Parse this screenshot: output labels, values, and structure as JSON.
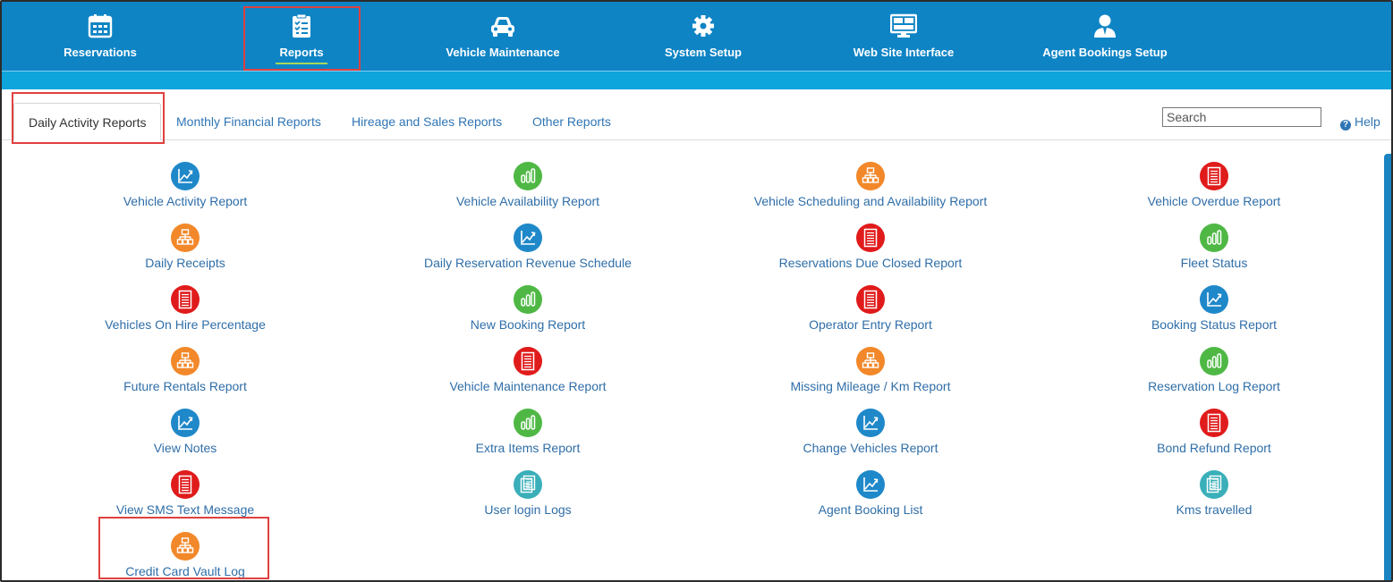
{
  "nav": {
    "items": [
      {
        "label": "Reservations",
        "icon": "calendar-icon"
      },
      {
        "label": "Reports",
        "icon": "clipboard-checklist-icon",
        "active": true
      },
      {
        "label": "Vehicle Maintenance",
        "icon": "car-icon"
      },
      {
        "label": "System Setup",
        "icon": "gear-icon"
      },
      {
        "label": "Web Site Interface",
        "icon": "monitor-icon"
      },
      {
        "label": "Agent Bookings Setup",
        "icon": "agent-user-icon"
      }
    ]
  },
  "tabs": [
    {
      "label": "Daily Activity Reports",
      "active": true
    },
    {
      "label": "Monthly Financial Reports"
    },
    {
      "label": "Hireage and Sales Reports"
    },
    {
      "label": "Other Reports"
    }
  ],
  "search": {
    "placeholder": "Search"
  },
  "help": {
    "label": "Help"
  },
  "colors": {
    "nav_bg": "#0e84c5",
    "subbar": "#0ea5dd",
    "link": "#2f6ea8",
    "highlight": "#e0403f",
    "icon_blue": "#1f88c9",
    "icon_green": "#4fb845",
    "icon_orange": "#f2882a",
    "icon_red": "#e01b1b",
    "icon_teal": "#3aafb9"
  },
  "reports": {
    "col1": [
      {
        "label": "Vehicle Activity Report",
        "icon": "trend-chart-icon",
        "color": "blue"
      },
      {
        "label": "Daily Receipts",
        "icon": "org-chart-icon",
        "color": "orange"
      },
      {
        "label": "Vehicles On Hire Percentage",
        "icon": "document-icon",
        "color": "red"
      },
      {
        "label": "Future Rentals Report",
        "icon": "org-chart-icon",
        "color": "orange"
      },
      {
        "label": "View Notes",
        "icon": "trend-chart-icon",
        "color": "blue"
      },
      {
        "label": "View SMS Text Message",
        "icon": "document-icon",
        "color": "red"
      },
      {
        "label": "Credit Card Vault Log",
        "icon": "org-chart-icon",
        "color": "orange"
      }
    ],
    "col2": [
      {
        "label": "Vehicle Availability Report",
        "icon": "bar-chart-icon",
        "color": "green"
      },
      {
        "label": "Daily Reservation Revenue Schedule",
        "icon": "trend-chart-icon",
        "color": "blue"
      },
      {
        "label": "New Booking Report",
        "icon": "bar-chart-icon",
        "color": "green"
      },
      {
        "label": "Vehicle Maintenance Report",
        "icon": "document-icon",
        "color": "red"
      },
      {
        "label": "Extra Items Report",
        "icon": "bar-chart-icon",
        "color": "green"
      },
      {
        "label": "User login Logs",
        "icon": "log-list-icon",
        "color": "teal"
      }
    ],
    "col3": [
      {
        "label": "Vehicle Scheduling and Availability Report",
        "icon": "org-chart-icon",
        "color": "orange"
      },
      {
        "label": "Reservations Due Closed Report",
        "icon": "document-icon",
        "color": "red"
      },
      {
        "label": "Operator Entry Report",
        "icon": "document-icon",
        "color": "red"
      },
      {
        "label": "Missing Mileage / Km Report",
        "icon": "org-chart-icon",
        "color": "orange"
      },
      {
        "label": "Change Vehicles Report",
        "icon": "trend-chart-icon",
        "color": "blue"
      },
      {
        "label": "Agent Booking List",
        "icon": "trend-chart-icon",
        "color": "blue"
      }
    ],
    "col4": [
      {
        "label": "Vehicle Overdue Report",
        "icon": "document-icon",
        "color": "red"
      },
      {
        "label": "Fleet Status",
        "icon": "bar-chart-icon",
        "color": "green"
      },
      {
        "label": "Booking Status Report",
        "icon": "trend-chart-icon",
        "color": "blue"
      },
      {
        "label": "Reservation Log Report",
        "icon": "bar-chart-icon",
        "color": "green"
      },
      {
        "label": "Bond Refund Report",
        "icon": "document-icon",
        "color": "red"
      },
      {
        "label": "Kms travelled",
        "icon": "log-list-icon",
        "color": "teal"
      }
    ]
  }
}
